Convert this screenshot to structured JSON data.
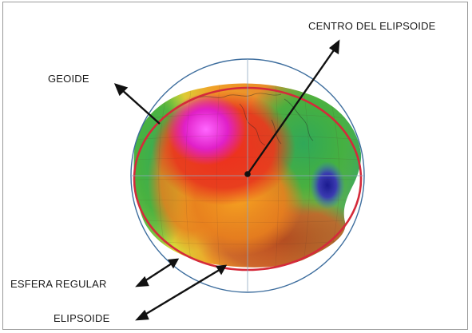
{
  "labels": {
    "center": "CENTRO DEL ELIPSOIDE",
    "geoid": "GEOIDE",
    "sphere": "ESFERA REGULAR",
    "ellipsoid": "ELIPSOIDE"
  },
  "colors": {
    "sphere_outline": "#3e6e9e",
    "ellipsoid_outline": "#d42a3a",
    "arrow": "#111111",
    "geoid_high": "#e020c8",
    "geoid_mid_high": "#e83a1e",
    "geoid_mid": "#f08a20",
    "geoid_low": "#3aa83a",
    "geoid_lowest": "#2a2aa0"
  }
}
